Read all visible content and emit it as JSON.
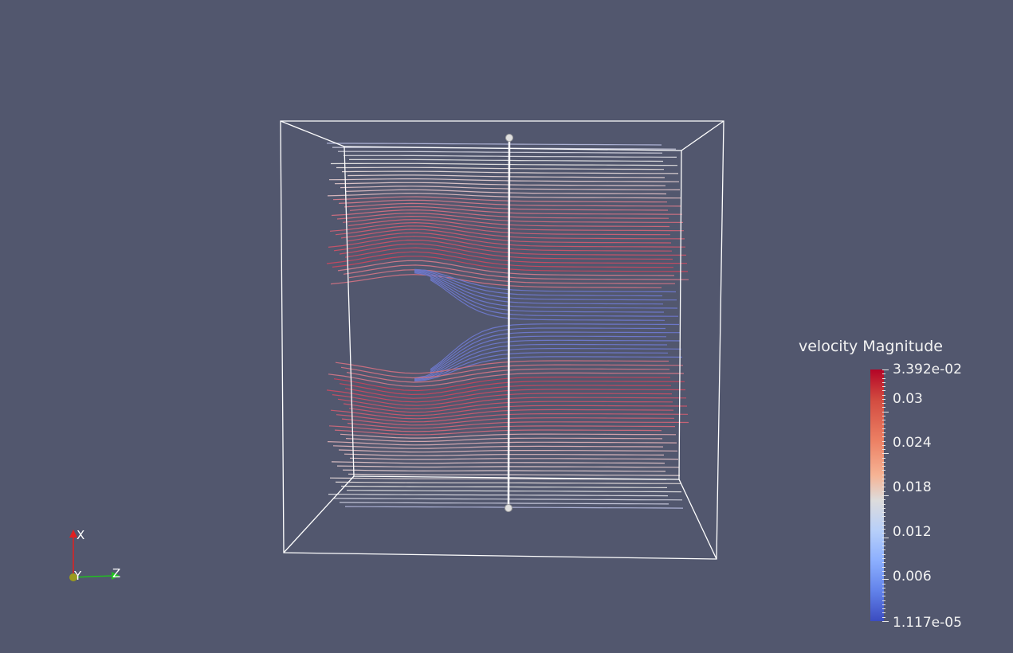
{
  "legend": {
    "title": "velocity Magnitude",
    "max_label": "3.392e-02",
    "min_label": "1.117e-05",
    "range": [
      1.117e-05,
      0.03392
    ],
    "ticks": [
      {
        "value": 0.03,
        "label": "0.03"
      },
      {
        "value": 0.024,
        "label": "0.024"
      },
      {
        "value": 0.018,
        "label": "0.018"
      },
      {
        "value": 0.012,
        "label": "0.012"
      },
      {
        "value": 0.006,
        "label": "0.006"
      }
    ],
    "colormap": [
      "#3b4cc0",
      "#dddcdc",
      "#b40426"
    ]
  },
  "axes": {
    "x_label": "X",
    "y_label": "Y",
    "z_label": "Z",
    "x_color": "#e02020",
    "y_color": "#c8c800",
    "z_color": "#20c020"
  },
  "scene": {
    "background": "#52576e",
    "outline_color": "#ffffff",
    "streamline_count": 90
  }
}
